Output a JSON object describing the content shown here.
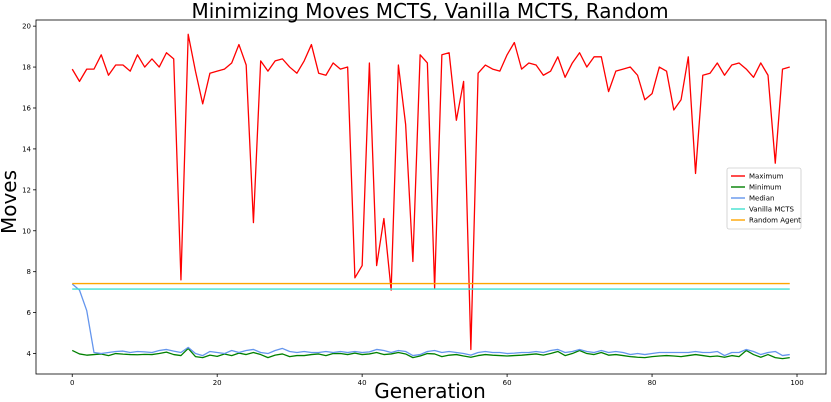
{
  "chart_data": {
    "type": "line",
    "title": "Minimizing Moves MCTS, Vanilla MCTS, Random",
    "xlabel": "Generation",
    "ylabel": "Moves",
    "xlim": [
      -5,
      104
    ],
    "ylim": [
      3.0,
      20.3
    ],
    "xticks": [
      0,
      20,
      40,
      60,
      80,
      100
    ],
    "yticks": [
      4,
      6,
      8,
      10,
      12,
      14,
      16,
      18,
      20
    ],
    "grid": false,
    "legend_position": "center-right",
    "series": [
      {
        "name": "Maximum",
        "color": "#ff0000",
        "x": [
          0,
          1,
          2,
          3,
          4,
          5,
          6,
          7,
          8,
          9,
          10,
          11,
          12,
          13,
          14,
          15,
          16,
          17,
          18,
          19,
          20,
          21,
          22,
          23,
          24,
          25,
          26,
          27,
          28,
          29,
          30,
          31,
          32,
          33,
          34,
          35,
          36,
          37,
          38,
          39,
          40,
          41,
          42,
          43,
          44,
          45,
          46,
          47,
          48,
          49,
          50,
          51,
          52,
          53,
          54,
          55,
          56,
          57,
          58,
          59,
          60,
          61,
          62,
          63,
          64,
          65,
          66,
          67,
          68,
          69,
          70,
          71,
          72,
          73,
          74,
          75,
          76,
          77,
          78,
          79,
          80,
          81,
          82,
          83,
          84,
          85,
          86,
          87,
          88,
          89,
          90,
          91,
          92,
          93,
          94,
          95,
          96,
          97,
          98,
          99
        ],
        "y": [
          17.9,
          17.3,
          17.9,
          17.9,
          18.6,
          17.6,
          18.1,
          18.1,
          17.8,
          18.6,
          18.0,
          18.4,
          18.0,
          18.7,
          18.4,
          7.6,
          19.6,
          17.8,
          16.2,
          17.7,
          17.8,
          17.9,
          18.2,
          19.1,
          18.1,
          10.4,
          18.3,
          17.8,
          18.3,
          18.4,
          18.0,
          17.7,
          18.3,
          19.1,
          17.7,
          17.6,
          18.2,
          17.9,
          18.0,
          7.7,
          8.3,
          18.2,
          8.3,
          10.6,
          7.1,
          18.1,
          15.2,
          8.5,
          18.6,
          18.2,
          7.2,
          18.6,
          18.7,
          15.4,
          17.3,
          4.2,
          17.7,
          18.1,
          17.9,
          17.8,
          18.6,
          19.2,
          17.9,
          18.2,
          18.1,
          17.6,
          17.8,
          18.5,
          17.5,
          18.2,
          18.7,
          18.0,
          18.5,
          18.5,
          16.8,
          17.8,
          17.9,
          18.0,
          17.6,
          16.4,
          16.7,
          18.0,
          17.8,
          15.9,
          16.4,
          18.5,
          12.8,
          17.6,
          17.7,
          18.2,
          17.6,
          18.1,
          18.2,
          17.9,
          17.5,
          18.2,
          17.6,
          13.3,
          17.9,
          18.0
        ]
      },
      {
        "name": "Minimum",
        "color": "#008000",
        "x": [
          0,
          1,
          2,
          3,
          4,
          5,
          6,
          7,
          8,
          9,
          10,
          11,
          12,
          13,
          14,
          15,
          16,
          17,
          18,
          19,
          20,
          21,
          22,
          23,
          24,
          25,
          26,
          27,
          28,
          29,
          30,
          31,
          32,
          33,
          34,
          35,
          36,
          37,
          38,
          39,
          40,
          41,
          42,
          43,
          44,
          45,
          46,
          47,
          48,
          49,
          50,
          51,
          52,
          53,
          54,
          55,
          56,
          57,
          58,
          59,
          60,
          61,
          62,
          63,
          64,
          65,
          66,
          67,
          68,
          69,
          70,
          71,
          72,
          73,
          74,
          75,
          76,
          77,
          78,
          79,
          80,
          81,
          82,
          83,
          84,
          85,
          86,
          87,
          88,
          89,
          90,
          91,
          92,
          93,
          94,
          95,
          96,
          97,
          98,
          99
        ],
        "y": [
          4.15,
          3.98,
          3.92,
          3.95,
          3.98,
          3.9,
          4.0,
          3.97,
          3.95,
          3.94,
          3.96,
          3.95,
          4.0,
          4.07,
          3.95,
          3.9,
          4.25,
          3.85,
          3.8,
          3.92,
          3.86,
          3.98,
          3.9,
          4.02,
          3.95,
          4.05,
          3.95,
          3.8,
          3.92,
          3.98,
          3.85,
          3.9,
          3.9,
          3.95,
          3.98,
          3.9,
          4.0,
          4.0,
          3.95,
          4.02,
          3.95,
          3.98,
          4.05,
          3.95,
          3.98,
          4.05,
          3.98,
          3.8,
          3.88,
          4.0,
          3.98,
          3.85,
          3.92,
          3.95,
          3.88,
          3.82,
          3.9,
          3.95,
          3.92,
          3.9,
          3.88,
          3.9,
          3.92,
          3.95,
          3.98,
          3.92,
          4.0,
          4.1,
          3.9,
          4.0,
          4.15,
          4.0,
          3.95,
          4.05,
          3.92,
          3.95,
          3.9,
          3.85,
          3.82,
          3.8,
          3.85,
          3.88,
          3.9,
          3.88,
          3.85,
          3.9,
          3.95,
          3.9,
          3.85,
          3.88,
          3.82,
          3.9,
          3.85,
          4.15,
          3.95,
          3.82,
          3.95,
          3.8,
          3.75,
          3.8
        ]
      },
      {
        "name": "Median",
        "color": "#6495ed",
        "x": [
          0,
          1,
          2,
          3,
          4,
          5,
          6,
          7,
          8,
          9,
          10,
          11,
          12,
          13,
          14,
          15,
          16,
          17,
          18,
          19,
          20,
          21,
          22,
          23,
          24,
          25,
          26,
          27,
          28,
          29,
          30,
          31,
          32,
          33,
          34,
          35,
          36,
          37,
          38,
          39,
          40,
          41,
          42,
          43,
          44,
          45,
          46,
          47,
          48,
          49,
          50,
          51,
          52,
          53,
          54,
          55,
          56,
          57,
          58,
          59,
          60,
          61,
          62,
          63,
          64,
          65,
          66,
          67,
          68,
          69,
          70,
          71,
          72,
          73,
          74,
          75,
          76,
          77,
          78,
          79,
          80,
          81,
          82,
          83,
          84,
          85,
          86,
          87,
          88,
          89,
          90,
          91,
          92,
          93,
          94,
          95,
          96,
          97,
          98,
          99
        ],
        "y": [
          7.4,
          7.1,
          6.1,
          4.05,
          4.0,
          4.05,
          4.1,
          4.12,
          4.05,
          4.1,
          4.08,
          4.05,
          4.15,
          4.2,
          4.12,
          4.05,
          4.3,
          4.0,
          3.9,
          4.1,
          4.05,
          4.0,
          4.15,
          4.05,
          4.15,
          4.2,
          4.05,
          4.0,
          4.15,
          4.25,
          4.1,
          4.05,
          4.1,
          4.05,
          4.05,
          4.1,
          4.05,
          4.1,
          4.05,
          4.1,
          4.05,
          4.08,
          4.2,
          4.15,
          4.05,
          4.15,
          4.1,
          3.9,
          3.95,
          4.1,
          4.15,
          4.05,
          4.1,
          4.05,
          4.0,
          3.92,
          4.05,
          4.1,
          4.05,
          4.05,
          4.0,
          4.02,
          4.05,
          4.05,
          4.1,
          4.05,
          4.15,
          4.2,
          4.05,
          4.1,
          4.2,
          4.1,
          4.05,
          4.15,
          4.05,
          4.1,
          4.05,
          3.95,
          4.0,
          3.95,
          4.0,
          4.05,
          4.05,
          4.05,
          4.05,
          4.05,
          4.1,
          4.05,
          4.05,
          4.1,
          3.9,
          4.05,
          4.05,
          4.2,
          4.1,
          3.95,
          4.05,
          4.1,
          3.9,
          3.95
        ]
      },
      {
        "name": "Vanilla MCTS",
        "color": "#40e0d0",
        "x": [
          0,
          99
        ],
        "y": [
          7.15,
          7.15
        ]
      },
      {
        "name": "Random Agent",
        "color": "#ffa500",
        "x": [
          0,
          99
        ],
        "y": [
          7.42,
          7.42
        ]
      }
    ]
  }
}
